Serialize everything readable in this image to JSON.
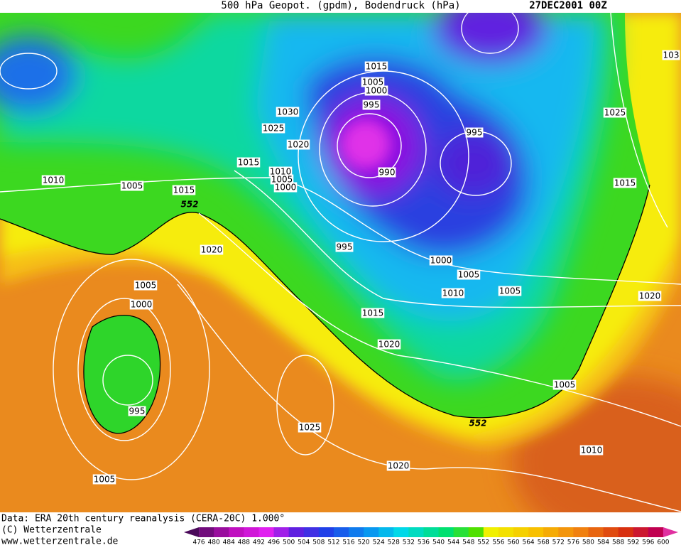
{
  "header": {
    "title": "500 hPa Geopot. (gpdm), Bodendruck (hPa)",
    "date": "27DEC2001 00Z"
  },
  "map_labels": [
    "1015",
    "1005",
    "1000",
    "995",
    "1030",
    "1025",
    "1020",
    "1015",
    "1010",
    "1005",
    "1000",
    "990",
    "995",
    "1025",
    "103",
    "1015",
    "1010",
    "1005",
    "1015",
    "552",
    "1020",
    "995",
    "1000",
    "1005",
    "1010",
    "1005",
    "1015",
    "1020",
    "1020",
    "1005",
    "1000",
    "995",
    "1025",
    "552",
    "1005",
    "1010",
    "1020",
    "1005"
  ],
  "footer": {
    "source": "Data: ERA 20th century reanalysis (CERA-20C) 1.000°",
    "copyright": "(C) Wetterzentrale",
    "url": "www.wetterzentrale.de"
  },
  "colorbar": {
    "levels": [
      476,
      480,
      484,
      488,
      492,
      496,
      500,
      504,
      508,
      512,
      516,
      520,
      524,
      528,
      532,
      536,
      540,
      544,
      548,
      552,
      556,
      560,
      564,
      568,
      572,
      576,
      580,
      584,
      588,
      592,
      596,
      600
    ]
  }
}
